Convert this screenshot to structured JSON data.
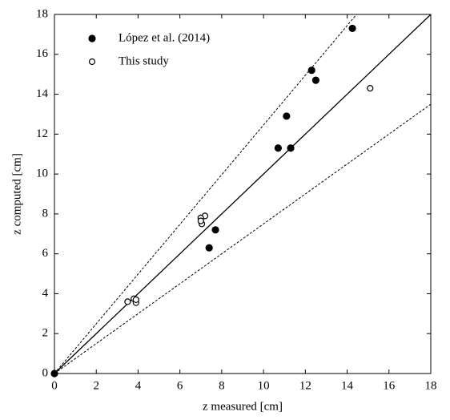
{
  "chart_data": {
    "type": "scatter",
    "xlabel": "z measured  [cm]",
    "ylabel": "z computed  [cm]",
    "xlim": [
      0,
      18
    ],
    "ylim": [
      0,
      18
    ],
    "xticks": [
      0,
      2,
      4,
      6,
      8,
      10,
      12,
      14,
      16,
      18
    ],
    "yticks": [
      0,
      2,
      4,
      6,
      8,
      10,
      12,
      14,
      16,
      18
    ],
    "legend": "top-left",
    "series": [
      {
        "name": "López et al. (2014)",
        "color": "#000000",
        "marker": "filled",
        "x": [
          0,
          14.25,
          12.3,
          12.5,
          11.1,
          10.7,
          11.3,
          7.7,
          7.4
        ],
        "values": [
          0,
          17.3,
          15.2,
          14.7,
          12.9,
          11.3,
          11.3,
          7.2,
          6.3
        ]
      },
      {
        "name": "This study",
        "color": "#000000",
        "marker": "open",
        "x": [
          15.1,
          7.2,
          7.0,
          7.05,
          7.0,
          3.5,
          3.8,
          3.9,
          3.9
        ],
        "values": [
          14.3,
          7.9,
          7.8,
          7.5,
          7.65,
          3.6,
          3.75,
          3.55,
          3.7
        ]
      }
    ],
    "reference_lines": [
      {
        "x": [
          0,
          18
        ],
        "values": [
          0,
          18
        ],
        "style": "solid"
      },
      {
        "x": [
          0,
          14.45
        ],
        "values": [
          0,
          18
        ],
        "style": "dashed"
      },
      {
        "x": [
          0,
          18
        ],
        "values": [
          0,
          13.5
        ],
        "style": "dashed"
      }
    ]
  }
}
